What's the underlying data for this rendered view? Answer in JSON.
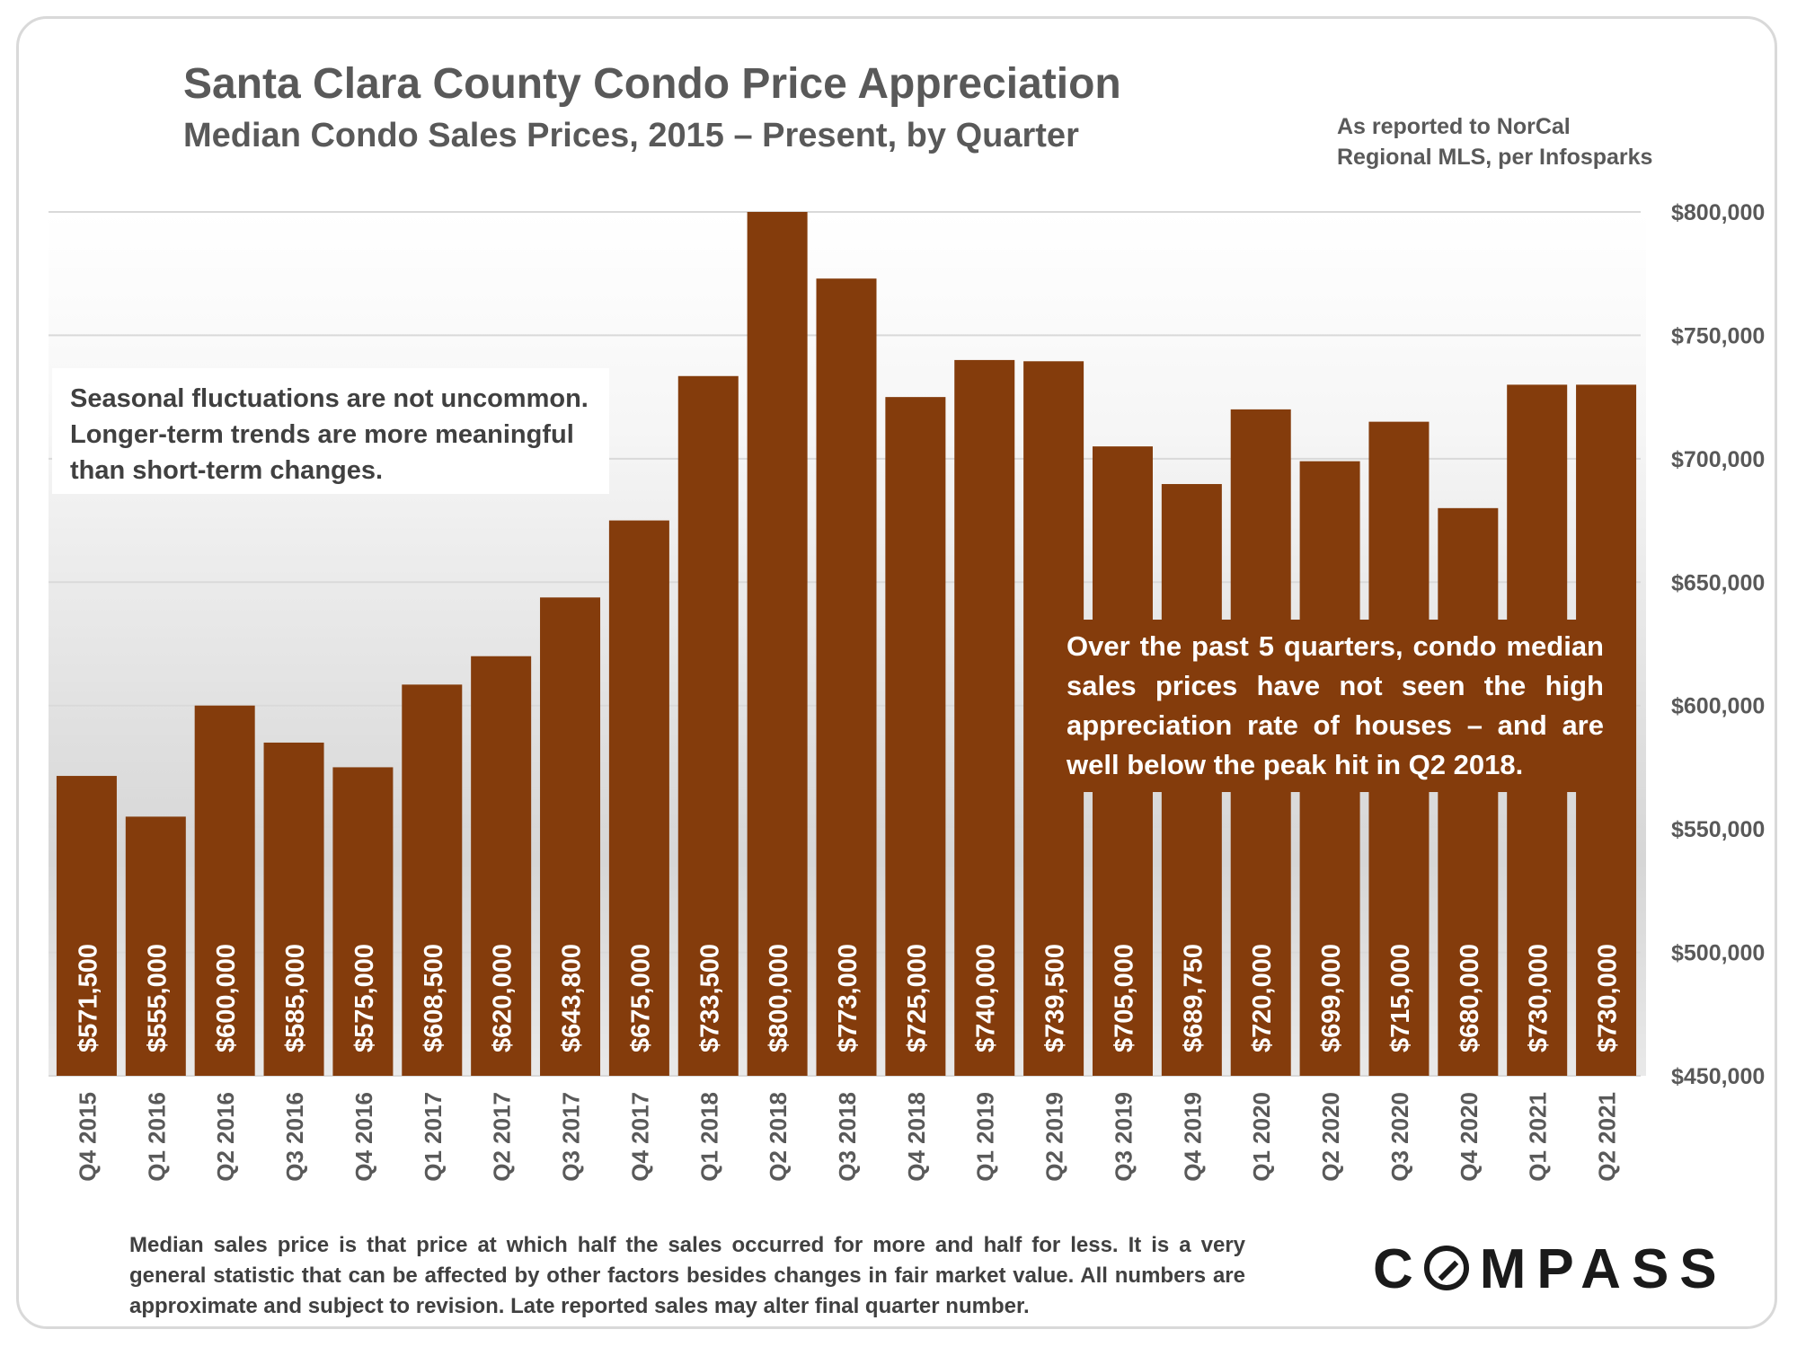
{
  "header": {
    "title": "Santa Clara County Condo Price Appreciation",
    "subtitle": "Median Condo Sales Prices, 2015 – Present, by Quarter",
    "source_note": "As reported to NorCal Regional MLS, per Infosparks"
  },
  "notes": {
    "left": "Seasonal fluctuations are not uncommon. Longer-term trends are more meaningful than short-term changes.",
    "right": "Over the past 5 quarters, condo median sales prices have not seen the high appreciation rate of houses – and are well below the peak hit in Q2 2018."
  },
  "footnote": "Median sales price is that price at which half the sales occurred for more and half for less. It is a very general statistic that can be affected by other factors besides changes in fair market value. All numbers are approximate and subject to revision. Late reported sales may alter final quarter number.",
  "logo": {
    "text": "COMPASS"
  },
  "colors": {
    "bar": "#843c0c",
    "bar_label": "#ffffff",
    "axis_text": "#595959",
    "grid": "#d9d9d9"
  },
  "chart_data": {
    "type": "bar",
    "title": "Santa Clara County Condo Price Appreciation",
    "subtitle": "Median Condo Sales Prices, 2015 – Present, by Quarter",
    "xlabel": "",
    "ylabel": "",
    "ylim": [
      450000,
      800000
    ],
    "y_ticks": [
      450000,
      500000,
      550000,
      600000,
      650000,
      700000,
      750000,
      800000
    ],
    "y_tick_labels": [
      "$450,000",
      "$500,000",
      "$550,000",
      "$600,000",
      "$650,000",
      "$700,000",
      "$750,000",
      "$800,000"
    ],
    "y_axis_position": "right",
    "grid": true,
    "categories": [
      "Q4 2015",
      "Q1 2016",
      "Q2 2016",
      "Q3 2016",
      "Q4 2016",
      "Q1 2017",
      "Q2 2017",
      "Q3 2017",
      "Q4 2017",
      "Q1 2018",
      "Q2 2018",
      "Q3 2018",
      "Q4 2018",
      "Q1 2019",
      "Q2 2019",
      "Q3 2019",
      "Q4 2019",
      "Q1 2020",
      "Q2 2020",
      "Q3 2020",
      "Q4 2020",
      "Q1 2021",
      "Q2 2021"
    ],
    "values": [
      571500,
      555000,
      600000,
      585000,
      575000,
      608500,
      620000,
      643800,
      675000,
      733500,
      800000,
      773000,
      725000,
      740000,
      739500,
      705000,
      689750,
      720000,
      699000,
      715000,
      680000,
      730000,
      730000
    ],
    "value_labels": [
      "$571,500",
      "$555,000",
      "$600,000",
      "$585,000",
      "$575,000",
      "$608,500",
      "$620,000",
      "$643,800",
      "$675,000",
      "$733,500",
      "$800,000",
      "$773,000",
      "$725,000",
      "$740,000",
      "$739,500",
      "$705,000",
      "$689,750",
      "$720,000",
      "$699,000",
      "$715,000",
      "$680,000",
      "$730,000",
      "$730,000"
    ]
  }
}
